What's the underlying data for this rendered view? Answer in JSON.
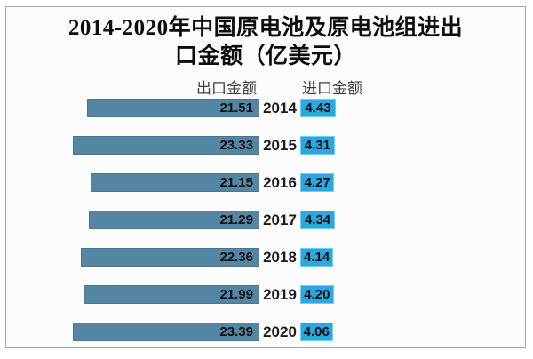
{
  "title": {
    "full": "2014-2020年中国原电池及原电池组进出口金额（亿美元）",
    "line1": "2014-2020年中国原电池及原电池组进出",
    "line2": "口金额（亿美元）"
  },
  "legend": {
    "export_label": "出口金额",
    "import_label": "进口金额"
  },
  "colors": {
    "export_bar": "#5485a3",
    "import_bar": "#29a9e0",
    "frame_border": "#a8a8a8",
    "value_text": "#101010"
  },
  "chart_data": {
    "type": "bar",
    "orientation": "horizontal",
    "title": "2014-2020年中国原电池及原电池组进出口金额（亿美元）",
    "unit": "亿美元",
    "categories": [
      "2014",
      "2015",
      "2016",
      "2017",
      "2018",
      "2019",
      "2020"
    ],
    "series": [
      {
        "name": "出口金额",
        "color": "#5485a3",
        "values": [
          21.51,
          23.33,
          21.15,
          21.29,
          22.36,
          21.99,
          23.39
        ]
      },
      {
        "name": "进口金额",
        "color": "#29a9e0",
        "values": [
          4.43,
          4.31,
          4.27,
          4.34,
          4.14,
          4.2,
          4.06
        ]
      }
    ],
    "value_labels": true,
    "value_label_decimals": 2,
    "legend_position": "top",
    "grid": false,
    "axis_hidden": true
  }
}
